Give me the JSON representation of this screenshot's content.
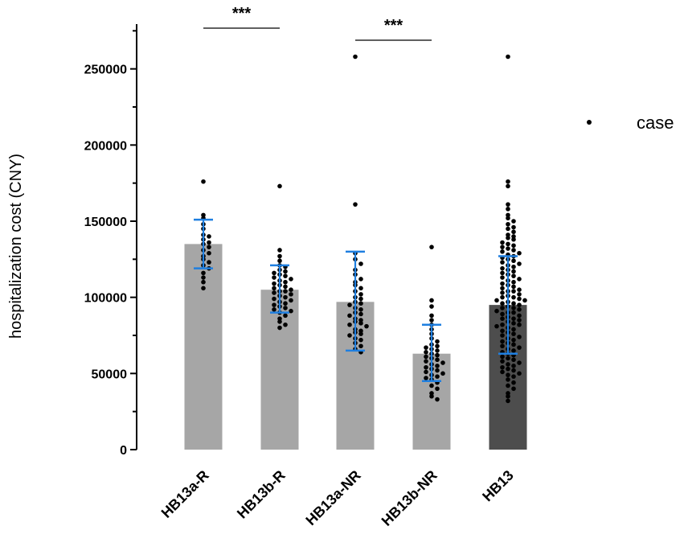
{
  "chart_data": {
    "type": "bar",
    "ylabel": "hospitalization cost (CNY)",
    "ylim": [
      0,
      280000
    ],
    "yticks": [
      0,
      50000,
      100000,
      150000,
      200000,
      250000
    ],
    "categories": [
      "HB13a-R",
      "HB13b-R",
      "HB13a-NR",
      "HB13b-NR",
      "HB13"
    ],
    "means": [
      135000,
      105000,
      97000,
      63000,
      95000
    ],
    "error_low": [
      119000,
      90000,
      65000,
      45000,
      63000
    ],
    "error_high": [
      151000,
      121000,
      130000,
      82000,
      127000
    ],
    "bar_colors": [
      "#a6a6a6",
      "#a6a6a6",
      "#a6a6a6",
      "#a6a6a6",
      "#4d4d4d"
    ],
    "errorbar_color": "#1f7fe0",
    "legend": [
      {
        "label": "case",
        "marker": "dot"
      }
    ],
    "legend_position": "right",
    "significance": [
      {
        "from": "HB13a-R",
        "to": "HB13b-R",
        "label": "***"
      },
      {
        "from": "HB13a-NR",
        "to": "HB13b-NR",
        "label": "***"
      }
    ],
    "points": [
      [
        176000,
        154000,
        152000,
        148000,
        145000,
        141000,
        140000,
        138000,
        136000,
        135000,
        133000,
        131000,
        129000,
        127000,
        125000,
        123000,
        121000,
        119000,
        116000,
        113000,
        110000,
        106000
      ],
      [
        173000,
        131000,
        127000,
        124000,
        121000,
        120000,
        118000,
        117000,
        116000,
        115000,
        114000,
        113000,
        112000,
        111000,
        110000,
        109000,
        108000,
        107000,
        106000,
        105000,
        104000,
        104000,
        103000,
        102000,
        101000,
        100000,
        99000,
        98000,
        97000,
        96000,
        95000,
        94000,
        93000,
        92000,
        91000,
        90000,
        88000,
        86000,
        84000,
        82000,
        80000
      ],
      [
        258000,
        161000,
        129000,
        125000,
        122000,
        118000,
        115000,
        112000,
        110000,
        108000,
        106000,
        104000,
        102000,
        100000,
        99000,
        97000,
        96000,
        95000,
        93000,
        92000,
        90000,
        89000,
        88000,
        86000,
        85000,
        84000,
        83000,
        82000,
        81000,
        79000,
        78000,
        77000,
        76000,
        75000,
        73000,
        72000,
        70000,
        68000,
        66000,
        64000
      ],
      [
        133000,
        98000,
        94000,
        88000,
        85000,
        82000,
        79000,
        76000,
        73000,
        71000,
        69000,
        68000,
        67000,
        66000,
        65000,
        64000,
        63000,
        62000,
        61000,
        60000,
        59000,
        58000,
        57000,
        56000,
        55000,
        54000,
        53000,
        52000,
        51000,
        50000,
        49000,
        48000,
        47000,
        46000,
        44000,
        42000,
        40000,
        37000,
        35000,
        33000
      ],
      [
        258000,
        176000,
        173000,
        161000,
        158000,
        154000,
        152000,
        150000,
        148000,
        146000,
        145000,
        143000,
        141000,
        140000,
        139000,
        138000,
        136000,
        135000,
        134000,
        133000,
        132000,
        131000,
        130000,
        129000,
        128000,
        127000,
        126000,
        125000,
        124000,
        123000,
        122000,
        121000,
        120000,
        119000,
        118000,
        117000,
        116000,
        115000,
        114000,
        113000,
        112000,
        111000,
        110000,
        109000,
        108000,
        107000,
        106000,
        105000,
        104000,
        104000,
        103000,
        102000,
        101000,
        100000,
        100000,
        99000,
        98000,
        98000,
        97000,
        96000,
        96000,
        95000,
        94000,
        93000,
        93000,
        92000,
        91000,
        90000,
        90000,
        89000,
        88000,
        87000,
        86000,
        86000,
        85000,
        84000,
        83000,
        82000,
        82000,
        81000,
        80000,
        79000,
        78000,
        77000,
        76000,
        75000,
        74000,
        73000,
        72000,
        71000,
        70000,
        69000,
        68000,
        67000,
        66000,
        65000,
        64000,
        63000,
        62000,
        61000,
        60000,
        59000,
        58000,
        57000,
        56000,
        55000,
        54000,
        53000,
        52000,
        51000,
        50000,
        49000,
        48000,
        46000,
        44000,
        42000,
        40000,
        37000,
        35000,
        32000
      ]
    ]
  }
}
